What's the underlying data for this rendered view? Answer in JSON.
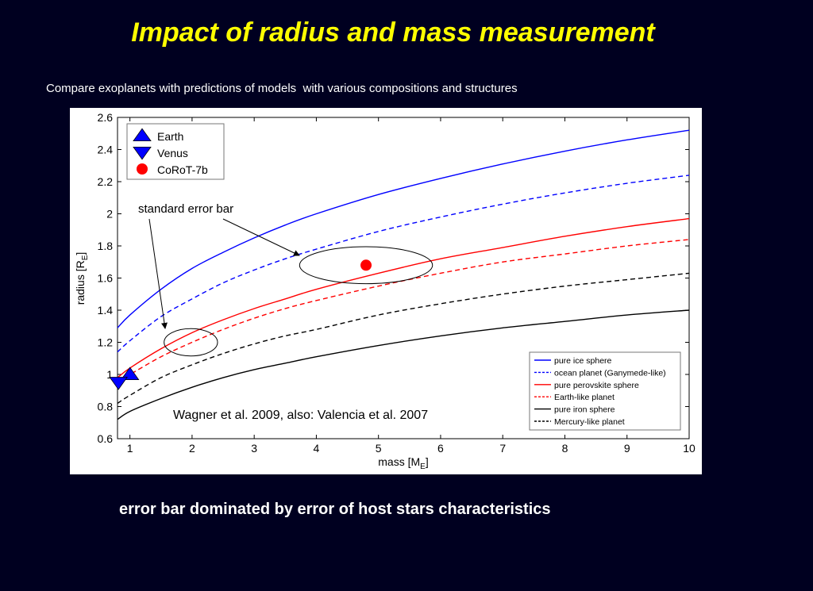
{
  "slide": {
    "title": "Impact of radius and mass measurement",
    "subtitle": "Compare exoplanets with predictions of models  with various compositions and structures",
    "bottom_note": "error bar dominated by error of host stars characteristics"
  },
  "chart_data": {
    "type": "line",
    "xlabel": "mass [M",
    "xlabel_sub": "E",
    "xlabel_end": "]",
    "ylabel": "radius [R",
    "ylabel_sub": "E",
    "ylabel_end": "]",
    "xlim": [
      0.8,
      10
    ],
    "ylim": [
      0.6,
      2.6
    ],
    "x_ticks": [
      1,
      2,
      3,
      4,
      5,
      6,
      7,
      8,
      9,
      10
    ],
    "y_ticks": [
      0.6,
      0.8,
      1,
      1.2,
      1.4,
      1.6,
      1.8,
      2,
      2.2,
      2.4,
      2.6
    ],
    "grid": false,
    "x": [
      0.8,
      1,
      1.5,
      2,
      2.5,
      3,
      3.5,
      4,
      5,
      6,
      7,
      8,
      9,
      10
    ],
    "series": [
      {
        "name": "pure ice sphere",
        "color": "#0000ff",
        "dash": "solid",
        "values": [
          1.29,
          1.37,
          1.53,
          1.66,
          1.76,
          1.85,
          1.93,
          2.0,
          2.12,
          2.22,
          2.31,
          2.39,
          2.46,
          2.52
        ]
      },
      {
        "name": "ocean planet (Ganymede-like)",
        "color": "#0000ff",
        "dash": "dashed",
        "values": [
          1.14,
          1.21,
          1.36,
          1.47,
          1.57,
          1.65,
          1.72,
          1.78,
          1.89,
          1.98,
          2.06,
          2.13,
          2.19,
          2.24
        ]
      },
      {
        "name": "pure perovskite sphere",
        "color": "#ff0000",
        "dash": "solid",
        "values": [
          0.98,
          1.04,
          1.16,
          1.26,
          1.34,
          1.41,
          1.47,
          1.53,
          1.63,
          1.72,
          1.79,
          1.86,
          1.92,
          1.97
        ]
      },
      {
        "name": "Earth-like planet",
        "color": "#ff0000",
        "dash": "dashed",
        "values": [
          0.96,
          1.0,
          1.11,
          1.2,
          1.28,
          1.35,
          1.41,
          1.46,
          1.55,
          1.63,
          1.7,
          1.75,
          1.8,
          1.84
        ]
      },
      {
        "name": "pure iron sphere",
        "color": "#000000",
        "dash": "solid",
        "values": [
          0.72,
          0.77,
          0.85,
          0.92,
          0.98,
          1.03,
          1.07,
          1.11,
          1.18,
          1.24,
          1.29,
          1.33,
          1.37,
          1.4
        ]
      },
      {
        "name": "Mercury-like planet",
        "color": "#000000",
        "dash": "dashed",
        "values": [
          0.82,
          0.87,
          0.98,
          1.06,
          1.13,
          1.19,
          1.24,
          1.28,
          1.37,
          1.44,
          1.5,
          1.55,
          1.59,
          1.63
        ]
      }
    ],
    "points": [
      {
        "name": "Earth",
        "x": 1.0,
        "y": 1.0,
        "marker": "triangle-up",
        "color": "#0000ff"
      },
      {
        "name": "Venus",
        "x": 0.815,
        "y": 0.95,
        "marker": "triangle-down",
        "color": "#0000ff"
      },
      {
        "name": "CoRoT-7b",
        "x": 4.8,
        "y": 1.68,
        "marker": "circle",
        "color": "#ff0000"
      }
    ],
    "error_ellipses": [
      {
        "cx": 4.8,
        "cy": 1.68,
        "rx": 1.07,
        "ry": 0.115
      },
      {
        "cx": 1.98,
        "cy": 1.2,
        "rx": 0.43,
        "ry": 0.085
      }
    ],
    "legend_markers_position": "top-left",
    "legend_lines_position": "bottom-right",
    "annotations": {
      "error_bar_label": "standard error bar",
      "citation": "Wagner et al. 2009, also: Valencia et al. 2007"
    }
  }
}
